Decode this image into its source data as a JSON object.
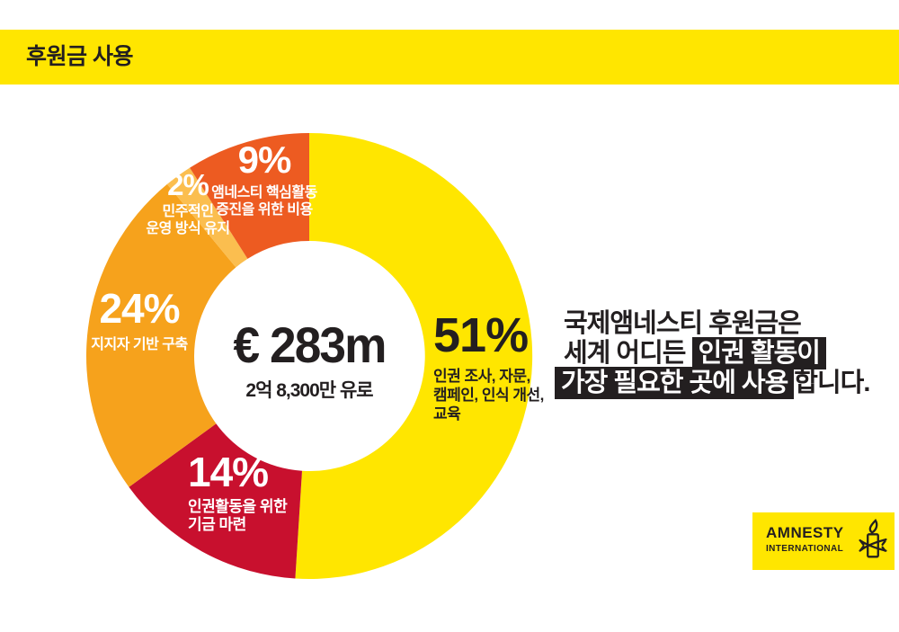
{
  "header": {
    "title": "후원금 사용"
  },
  "chart_data": {
    "type": "pie",
    "style": "donut",
    "title": "후원금 사용",
    "total": 100,
    "center": {
      "amount": "€ 283m",
      "subtitle": "2억 8,300만 유로"
    },
    "segments": [
      {
        "value": 51,
        "pct_label": "51%",
        "desc": "인권 조사, 자문,\n캠페인, 인식 개선,\n교육",
        "color": "#FFE600",
        "text_color": "#231F20"
      },
      {
        "value": 14,
        "pct_label": "14%",
        "desc": "인권활동을 위한\n기금 마련",
        "color": "#C8102E",
        "text_color": "#FFFFFF"
      },
      {
        "value": 24,
        "pct_label": "24%",
        "desc": "지지자 기반 구축",
        "color": "#F6A21C",
        "text_color": "#FFFFFF"
      },
      {
        "value": 2,
        "pct_label": "2%",
        "desc": "민주적인\n운영 방식 유지",
        "color": "#FBBE4F",
        "text_color": "#FFFFFF"
      },
      {
        "value": 9,
        "pct_label": "9%",
        "desc": "앰네스티 핵심활동\n증진을 위한 비용",
        "color": "#ED5B21",
        "text_color": "#FFFFFF"
      }
    ],
    "legend_position": "on-chart",
    "start_angle_deg": 0,
    "direction": "clockwise"
  },
  "message": {
    "line1": "국제앰네스티 후원금은",
    "line2_normal": "세계 어디든 ",
    "line2_highlight": "인권 활동이",
    "line3_highlight": "가장 필요한 곳에 사용",
    "line3_normal": "합니다."
  },
  "logo": {
    "line1": "AMNESTY",
    "line2": "INTERNATIONAL"
  },
  "colors": {
    "brand_yellow": "#FFE600",
    "ink_black": "#231F20",
    "background": "#FFFFFF"
  }
}
